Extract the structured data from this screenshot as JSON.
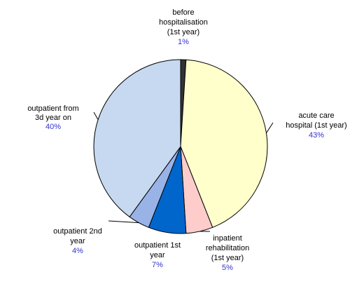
{
  "chart_data": {
    "type": "pie",
    "categories": [
      [
        "before",
        "hospitalisation",
        "(1st year)"
      ],
      [
        "acute care",
        "hospital (1st year)"
      ],
      [
        "inpatient",
        "rehabilitation",
        "(1st year)"
      ],
      [
        "outpatient 1st",
        "year"
      ],
      [
        "outpatient 2nd",
        "year"
      ],
      [
        "outpatient from",
        "3d year on"
      ]
    ],
    "values": [
      1,
      43,
      5,
      7,
      4,
      40
    ],
    "value_labels": [
      "1%",
      "43%",
      "5%",
      "7%",
      "4%",
      "40%"
    ],
    "colors": [
      "#333333",
      "#ffffcc",
      "#ffcccc",
      "#0066cc",
      "#99b3e6",
      "#c6d9f0"
    ]
  }
}
